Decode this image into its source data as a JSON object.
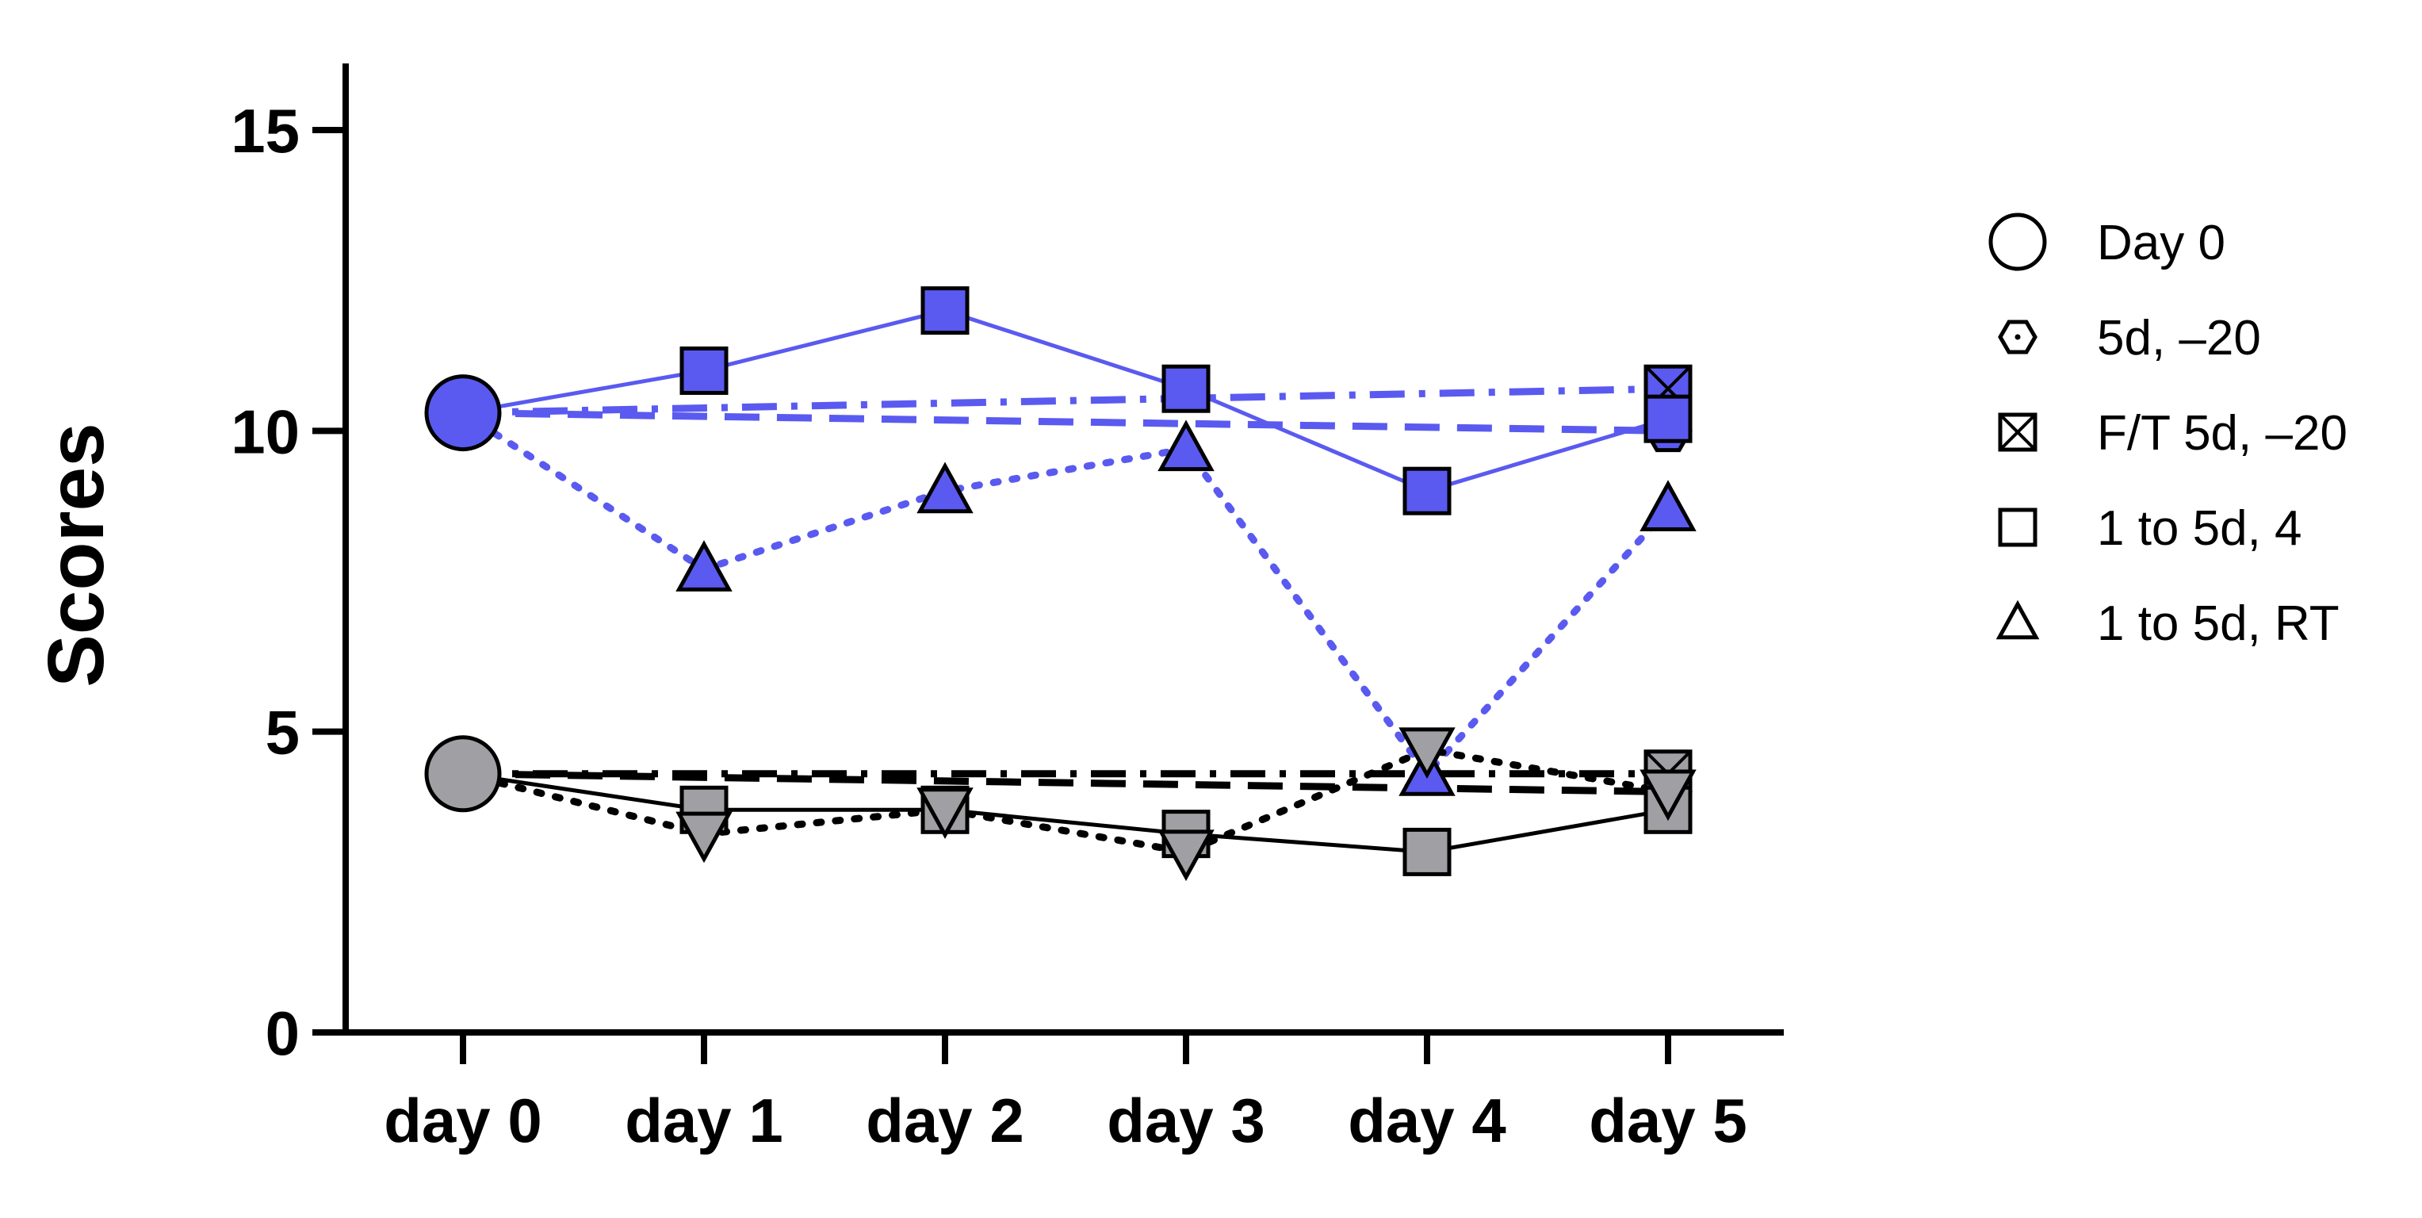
{
  "chart_data": {
    "type": "line",
    "ylabel": "Scores",
    "xlabel": "",
    "categories": [
      "day 0",
      "day 1",
      "day 2",
      "day 3",
      "day 4",
      "day 5"
    ],
    "ylim": [
      0,
      15
    ],
    "yticks": [
      0,
      5,
      10,
      15
    ],
    "grid": false,
    "legend_position": "right",
    "legend": [
      {
        "label": "Day 0",
        "marker": "circle"
      },
      {
        "label": "5d, –20",
        "marker": "hexagon-dot"
      },
      {
        "label": "F/T 5d, –20",
        "marker": "square-x"
      },
      {
        "label": "1 to 5d, 4",
        "marker": "square"
      },
      {
        "label": "1 to 5d, RT",
        "marker": "triangle"
      }
    ],
    "colors": {
      "blue_group": "#5a5af0",
      "gray_group": "#a0a0a4",
      "gray_line": "#000000"
    },
    "series": [
      {
        "group": "blue",
        "marker": "hexagon-dot",
        "line": "dashed",
        "x": [
          0,
          5
        ],
        "values": [
          10.3,
          10.0
        ]
      },
      {
        "group": "blue",
        "marker": "square-x",
        "line": "dashdot",
        "x": [
          0,
          5
        ],
        "values": [
          10.3,
          10.7
        ]
      },
      {
        "group": "blue",
        "marker": "square",
        "line": "solid",
        "x": [
          0,
          1,
          2,
          3,
          4,
          5
        ],
        "values": [
          10.3,
          11.0,
          12.0,
          10.7,
          9.0,
          10.2
        ]
      },
      {
        "group": "blue",
        "marker": "triangle",
        "line": "dotted",
        "x": [
          0,
          1,
          2,
          3,
          4,
          5
        ],
        "values": [
          10.3,
          7.7,
          9.0,
          9.7,
          4.3,
          8.7
        ]
      },
      {
        "group": "gray",
        "marker": "hexagon-dot",
        "line": "dashed",
        "x": [
          0,
          5
        ],
        "values": [
          4.3,
          4.0
        ]
      },
      {
        "group": "gray",
        "marker": "square-x",
        "line": "dashdot",
        "x": [
          0,
          5
        ],
        "values": [
          4.3,
          4.3
        ]
      },
      {
        "group": "gray",
        "marker": "square",
        "line": "solid",
        "x": [
          0,
          1,
          2,
          3,
          4,
          5
        ],
        "values": [
          4.3,
          3.7,
          3.7,
          3.3,
          3.0,
          3.7
        ]
      },
      {
        "group": "gray",
        "marker": "triangle-down",
        "line": "dotted",
        "x": [
          0,
          1,
          2,
          3,
          4,
          5
        ],
        "values": [
          4.3,
          3.3,
          3.7,
          3.0,
          4.7,
          4.0
        ]
      },
      {
        "group": "blue",
        "marker": "circle",
        "line": "none",
        "x": [
          0
        ],
        "values": [
          10.3
        ]
      },
      {
        "group": "gray",
        "marker": "circle",
        "line": "none",
        "x": [
          0
        ],
        "values": [
          4.3
        ]
      }
    ]
  }
}
